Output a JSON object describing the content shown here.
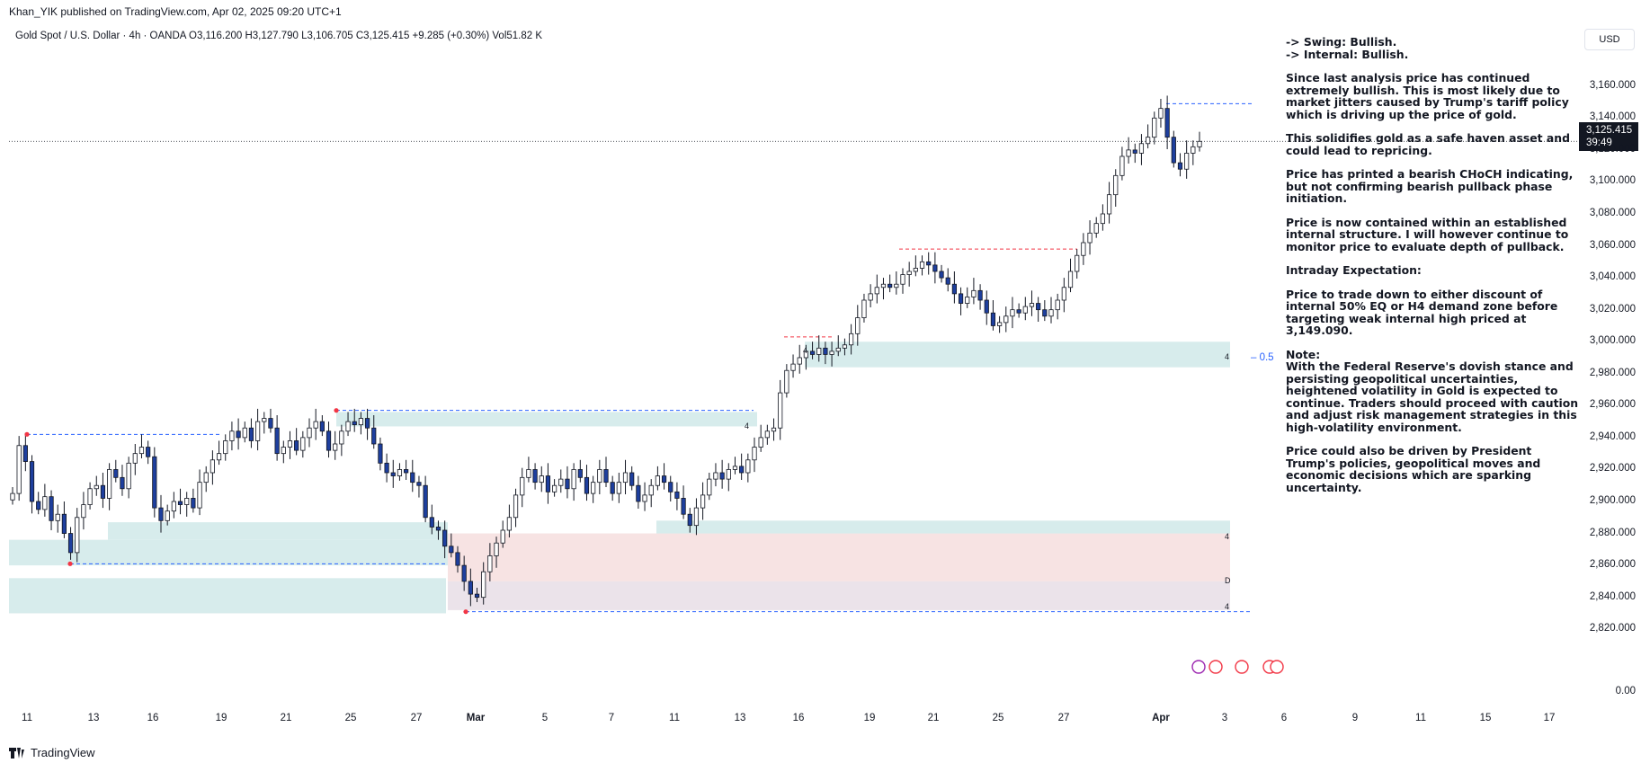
{
  "header": {
    "published": "Khan_YIK published on TradingView.com, Apr 02, 2025 09:20 UTC+1"
  },
  "symbol": {
    "name": "Gold Spot / U.S. Dollar",
    "timeframe": "4h",
    "exchange": "OANDA",
    "ohlc_line": "Gold Spot / U.S. Dollar · 4h · OANDA  O3,116.200  H3,127.790  L3,106.705  C3,125.415  +9.285 (+0.30%)  Vol51.82 K"
  },
  "currency": "USD",
  "price_badge": {
    "price": "3,125.415",
    "countdown": "39:49"
  },
  "fib_label": "0.5",
  "zone_labels": {
    "z1": "4",
    "z2": "4",
    "z3": "D",
    "z4": "4",
    "z5": "4",
    "z6": "4"
  },
  "notes": {
    "swing": "-> Swing:  Bullish.",
    "internal": "-> Internal:  Bullish.",
    "p1": "Since last analysis price has continued extremely bullish.  This is most likely due to market jitters caused by Trump's tariff policy which is driving up the price of gold.",
    "p2": "This solidifies gold as a safe haven asset and could lead to repricing.",
    "p3": "Price has printed a bearish CHoCH indicating, but not confirming bearish pullback phase initiation.",
    "p4": "Price is now contained within an established internal structure. I will however continue to monitor price to evaluate depth of pullback.",
    "p5": "Intraday Expectation:",
    "p6": "Price to trade down to either discount of internal 50% EQ or H4 demand zone before targeting weak internal high priced at 3,149.090.",
    "p7_title": "Note:",
    "p7": "With the Federal Reserve's dovish stance and persisting geopolitical uncertainties, heightened volatility in Gold is expected to continue. Traders should proceed with caution and adjust risk management strategies in this high-volatility environment.",
    "p8": "Price could also be driven by President Trump's policies, geopolitical moves and economic decisions which are sparking uncertainty."
  },
  "y_axis": {
    "ticks": [
      "3,160.000",
      "3,140.000",
      "3,120.000",
      "3,100.000",
      "3,080.000",
      "3,060.000",
      "3,040.000",
      "3,020.000",
      "3,000.000",
      "2,980.000",
      "2,960.000",
      "2,940.000",
      "2,920.000",
      "2,900.000",
      "2,880.000",
      "2,860.000",
      "2,840.000",
      "2,820.000"
    ],
    "volume_tick": "0.00"
  },
  "x_axis": {
    "ticks": [
      "11",
      "13",
      "16",
      "19",
      "21",
      "25",
      "27",
      "Mar",
      "5",
      "7",
      "11",
      "13",
      "16",
      "19",
      "21",
      "25",
      "27",
      "Apr",
      "3",
      "6",
      "9",
      "11",
      "15",
      "17"
    ]
  },
  "footer": {
    "brand": "TradingView"
  },
  "colors": {
    "bull": "#ffffff",
    "bear": "#1e3f9e",
    "wick": "#131722",
    "demand": "#d7ecec",
    "supply": "#f7e3e3",
    "dash_blue": "#2962ff",
    "dash_red": "#f23645"
  },
  "chart_data": {
    "type": "candlestick",
    "title": "Gold Spot / U.S. Dollar",
    "ylim": [
      2810,
      3170
    ],
    "last_price": 3125.415,
    "x_tick_labels": [
      "11",
      "13",
      "16",
      "19",
      "21",
      "25",
      "27",
      "Mar",
      "5",
      "7",
      "11",
      "13",
      "16",
      "19",
      "21",
      "25",
      "27",
      "Apr",
      "3",
      "6",
      "9",
      "11",
      "15",
      "17"
    ],
    "close": [
      2905,
      2935,
      2925,
      2900,
      2895,
      2903,
      2888,
      2892,
      2880,
      2868,
      2890,
      2898,
      2908,
      2910,
      2902,
      2920,
      2915,
      2908,
      2924,
      2930,
      2934,
      2928,
      2896,
      2888,
      2894,
      2900,
      2898,
      2902,
      2896,
      2912,
      2918,
      2926,
      2930,
      2938,
      2944,
      2940,
      2946,
      2938,
      2950,
      2952,
      2946,
      2930,
      2934,
      2938,
      2932,
      2940,
      2946,
      2950,
      2944,
      2932,
      2936,
      2944,
      2950,
      2948,
      2952,
      2946,
      2936,
      2924,
      2918,
      2916,
      2920,
      2918,
      2912,
      2910,
      2890,
      2884,
      2882,
      2872,
      2868,
      2860,
      2850,
      2842,
      2840,
      2856,
      2866,
      2874,
      2882,
      2890,
      2904,
      2915,
      2920,
      2912,
      2916,
      2906,
      2910,
      2914,
      2908,
      2920,
      2915,
      2905,
      2912,
      2920,
      2912,
      2905,
      2912,
      2918,
      2910,
      2900,
      2904,
      2910,
      2916,
      2912,
      2906,
      2902,
      2892,
      2885,
      2896,
      2904,
      2914,
      2918,
      2914,
      2920,
      2922,
      2918,
      2926,
      2934,
      2940,
      2944,
      2946,
      2968,
      2982,
      2986,
      2990,
      2994,
      2992,
      2996,
      2992,
      2994,
      2996,
      2998,
      3005,
      3015,
      3026,
      3030,
      3034,
      3036,
      3034,
      3036,
      3042,
      3044,
      3046,
      3050,
      3048,
      3044,
      3040,
      3036,
      3030,
      3024,
      3028,
      3032,
      3026,
      3018,
      3010,
      3012,
      3016,
      3020,
      3018,
      3022,
      3024,
      3020,
      3016,
      3020,
      3026,
      3034,
      3044,
      3054,
      3062,
      3068,
      3074,
      3080,
      3092,
      3104,
      3116,
      3120,
      3118,
      3124,
      3128,
      3140,
      3146,
      3128,
      3112,
      3108,
      3118,
      3122,
      3125.4
    ]
  }
}
